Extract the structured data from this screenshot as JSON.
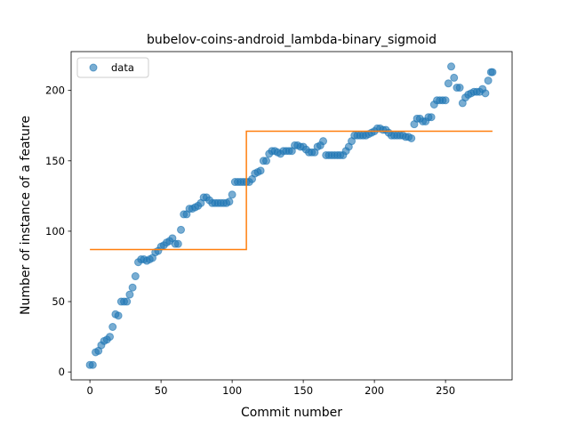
{
  "chart_data": {
    "type": "scatter",
    "title": "bubelov-coins-android_lambda-binary_sigmoid",
    "xlabel": "Commit number",
    "ylabel": "Number of instance of a feature",
    "xlim": [
      -13.2,
      296.8
    ],
    "ylim": [
      -5.6,
      227.6
    ],
    "xticks": [
      0,
      50,
      100,
      150,
      200,
      250
    ],
    "yticks": [
      0,
      50,
      100,
      150,
      200
    ],
    "legend": "upper left",
    "series": [
      {
        "name": "data",
        "type": "scatter",
        "color": "#1f77b4",
        "x": [
          0,
          2,
          4,
          6,
          8,
          10,
          12,
          14,
          16,
          18,
          20,
          22,
          24,
          26,
          28,
          30,
          32,
          34,
          36,
          38,
          40,
          42,
          44,
          46,
          48,
          50,
          52,
          54,
          56,
          58,
          60,
          62,
          64,
          66,
          68,
          70,
          72,
          74,
          76,
          78,
          80,
          82,
          84,
          86,
          88,
          90,
          92,
          94,
          96,
          98,
          100,
          102,
          104,
          106,
          108,
          110,
          112,
          114,
          116,
          118,
          120,
          122,
          124,
          126,
          128,
          130,
          132,
          134,
          136,
          138,
          140,
          142,
          144,
          146,
          148,
          150,
          152,
          154,
          156,
          158,
          160,
          162,
          164,
          166,
          168,
          170,
          172,
          174,
          176,
          178,
          180,
          182,
          184,
          186,
          188,
          190,
          192,
          194,
          196,
          198,
          200,
          202,
          204,
          206,
          208,
          210,
          212,
          214,
          216,
          218,
          220,
          222,
          224,
          226,
          228,
          230,
          232,
          234,
          236,
          238,
          240,
          242,
          244,
          246,
          248,
          250,
          252,
          254,
          256,
          258,
          260,
          262,
          264,
          266,
          268,
          270,
          272,
          274,
          276,
          278,
          280,
          282,
          283
        ],
        "values": [
          5,
          5,
          14,
          15,
          19,
          22,
          23,
          25,
          32,
          41,
          40,
          50,
          50,
          50,
          55,
          60,
          68,
          78,
          80,
          80,
          79,
          80,
          81,
          85,
          86,
          89,
          90,
          92,
          93,
          95,
          91,
          91,
          101,
          112,
          112,
          116,
          116,
          117,
          118,
          120,
          124,
          124,
          122,
          120,
          120,
          120,
          120,
          120,
          120,
          121,
          126,
          135,
          135,
          135,
          135,
          135,
          135,
          137,
          141,
          142,
          143,
          150,
          150,
          155,
          157,
          157,
          156,
          155,
          157,
          157,
          157,
          157,
          161,
          161,
          160,
          160,
          158,
          156,
          156,
          156,
          160,
          161,
          164,
          154,
          154,
          154,
          154,
          154,
          154,
          154,
          157,
          160,
          164,
          168,
          168,
          168,
          168,
          168,
          169,
          170,
          171,
          173,
          173,
          172,
          172,
          170,
          168,
          168,
          168,
          168,
          168,
          167,
          167,
          166,
          176,
          180,
          180,
          178,
          178,
          181,
          181,
          190,
          193,
          193,
          193,
          193,
          205,
          217,
          209,
          202,
          202,
          191,
          195,
          197,
          198,
          199,
          199,
          199,
          201,
          198,
          207,
          213,
          213
        ]
      },
      {
        "type": "line",
        "color": "#ff7f0e",
        "x": [
          0,
          110,
          110,
          283
        ],
        "values": [
          87,
          87,
          171,
          171
        ]
      }
    ]
  }
}
